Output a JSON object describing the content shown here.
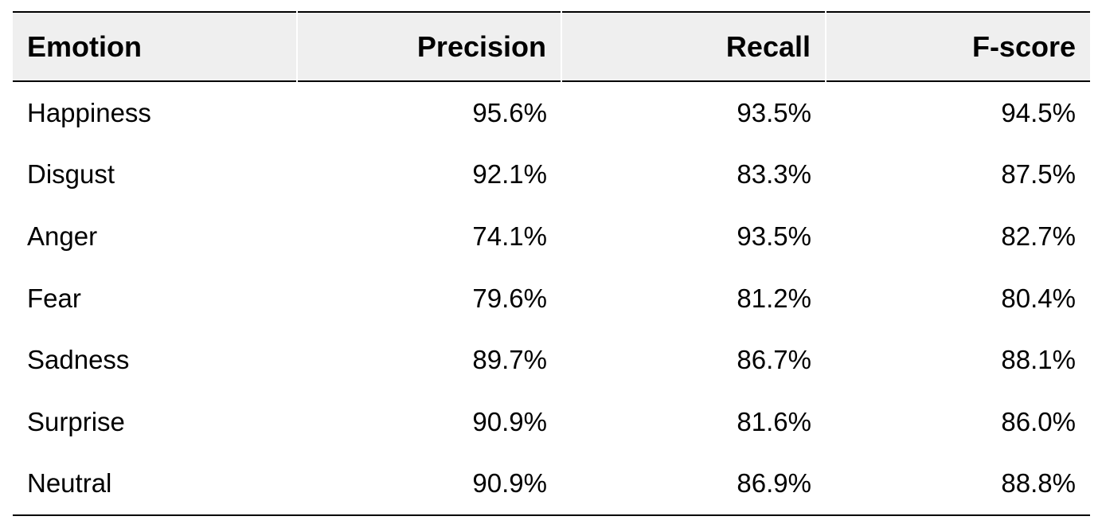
{
  "table": {
    "headers": [
      "Emotion",
      "Precision",
      "Recall",
      "F-score"
    ],
    "rows": [
      [
        "Happiness",
        "95.6%",
        "93.5%",
        "94.5%"
      ],
      [
        "Disgust",
        "92.1%",
        "83.3%",
        "87.5%"
      ],
      [
        "Anger",
        "74.1%",
        "93.5%",
        "82.7%"
      ],
      [
        "Fear",
        "79.6%",
        "81.2%",
        "80.4%"
      ],
      [
        "Sadness",
        "89.7%",
        "86.7%",
        "88.1%"
      ],
      [
        "Surprise",
        "90.9%",
        "81.6%",
        "86.0%"
      ],
      [
        "Neutral",
        "90.9%",
        "86.9%",
        "88.8%"
      ]
    ]
  }
}
